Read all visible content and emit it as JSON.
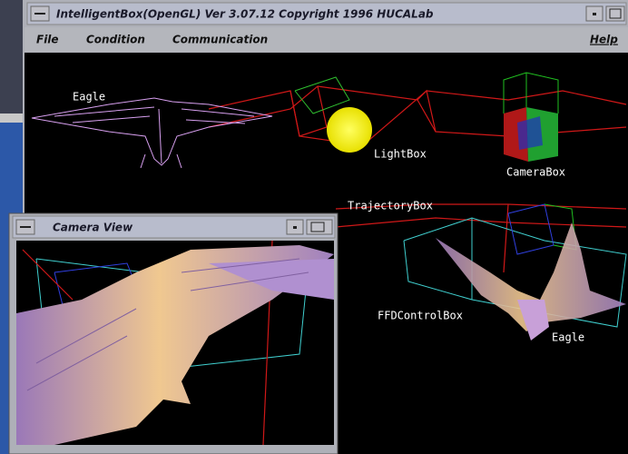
{
  "window": {
    "title": "IntelligentBox(OpenGL) Ver 3.07.12 Copyright 1996 HUCALab"
  },
  "menu": {
    "items": [
      "File",
      "Condition",
      "Communication"
    ],
    "help": "Help"
  },
  "scene": {
    "labels": [
      "Eagle",
      "LightBox",
      "CameraBox",
      "TrajectoryBox",
      "FFDControlBox",
      "Eagle"
    ]
  },
  "camera_window": {
    "title": "Camera View"
  }
}
